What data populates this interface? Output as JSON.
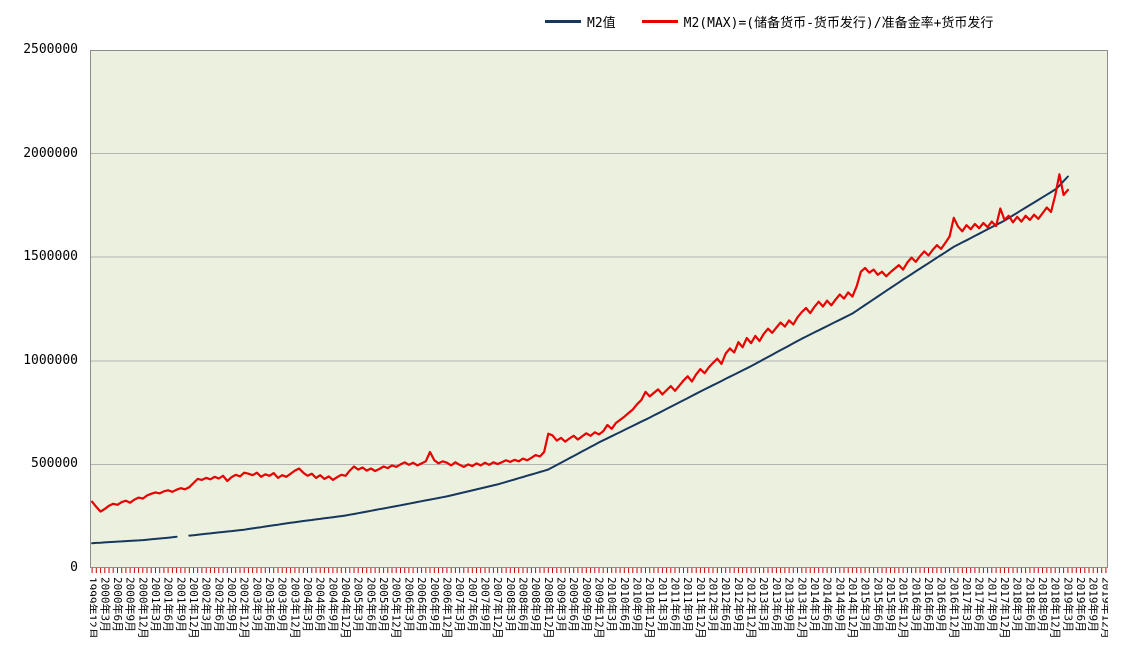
{
  "legend": [
    {
      "label": "M2值",
      "color": "#17375e"
    },
    {
      "label": "M2(MAX)=(储备货币-货币发行)/准备金率+货币发行",
      "color": "#e80000"
    }
  ],
  "y_axis": {
    "tick_labels": [
      "0",
      "500000",
      "1000000",
      "1500000",
      "2000000",
      "2500000"
    ],
    "tick_values": [
      0,
      500000,
      1000000,
      1500000,
      2000000,
      2500000
    ]
  },
  "chart_data": {
    "type": "line",
    "title": "",
    "xlabel": "",
    "ylabel": "",
    "ylim": [
      0,
      2500000
    ],
    "ytick_step": 500000,
    "grid": "horizontal",
    "legend_position": "top",
    "plot_bg": "#ebf1de",
    "grid_color": "#b3b3b3",
    "border_color": "#8c8c8c",
    "tick_color": "#cc0000",
    "x_interval": "monthly",
    "x_first": "1999年12月",
    "x_last_data": "2019年3月",
    "x_axis_last": "2019年12月",
    "total_months": 241,
    "x_labels": [
      "1999年12月",
      "2000年3月",
      "2000年6月",
      "2000年9月",
      "2000年12月",
      "2001年3月",
      "2001年6月",
      "2001年9月",
      "2001年12月",
      "2002年3月",
      "2002年6月",
      "2002年9月",
      "2002年12月",
      "2003年3月",
      "2003年6月",
      "2003年9月",
      "2003年12月",
      "2004年3月",
      "2004年6月",
      "2004年9月",
      "2004年12月",
      "2005年3月",
      "2005年6月",
      "2005年9月",
      "2005年12月",
      "2006年3月",
      "2006年6月",
      "2006年9月",
      "2006年12月",
      "2007年3月",
      "2007年6月",
      "2007年9月",
      "2007年12月",
      "2008年3月",
      "2008年6月",
      "2008年9月",
      "2008年12月",
      "2009年3月",
      "2009年6月",
      "2009年9月",
      "2009年12月",
      "2010年3月",
      "2010年6月",
      "2010年9月",
      "2010年12月",
      "2011年3月",
      "2011年6月",
      "2011年9月",
      "2011年12月",
      "2012年3月",
      "2012年6月",
      "2012年9月",
      "2012年12月",
      "2013年3月",
      "2013年6月",
      "2013年9月",
      "2013年12月",
      "2014年3月",
      "2014年6月",
      "2014年9月",
      "2014年12月",
      "2015年3月",
      "2015年6月",
      "2015年9月",
      "2015年12月",
      "2016年3月",
      "2016年6月",
      "2016年9月",
      "2016年12月",
      "2017年3月",
      "2017年6月",
      "2017年9月",
      "2017年12月",
      "2018年3月",
      "2018年6月",
      "2018年9月",
      "2018年12月",
      "2019年3月",
      "2019年6月",
      "2019年9月",
      "2019年12月"
    ],
    "series": [
      {
        "name": "M2值",
        "color": "#17375e",
        "values": [
          119900,
          121100,
          122300,
          123600,
          124800,
          126000,
          127300,
          128500,
          129700,
          131000,
          132200,
          133400,
          134600,
          136600,
          138600,
          140500,
          142500,
          144500,
          146400,
          148400,
          150400,
          null,
          null,
          156300,
          158300,
          160500,
          162800,
          165000,
          167200,
          169400,
          171700,
          173900,
          176100,
          178300,
          180600,
          182800,
          185000,
          188000,
          191000,
          194100,
          197100,
          200100,
          203100,
          206100,
          209200,
          212200,
          215200,
          218200,
          221200,
          223900,
          226600,
          229200,
          231900,
          234500,
          237200,
          239900,
          242500,
          245200,
          247900,
          250500,
          253200,
          257000,
          260800,
          264600,
          268400,
          272200,
          276000,
          279800,
          283600,
          287300,
          291100,
          294900,
          298800,
          302700,
          306600,
          310500,
          314400,
          318300,
          322200,
          326100,
          330000,
          333900,
          337800,
          341700,
          345600,
          350400,
          355200,
          360100,
          364900,
          369700,
          374500,
          379300,
          384200,
          389000,
          393800,
          398600,
          403400,
          409400,
          415400,
          421400,
          427300,
          433300,
          439300,
          445300,
          451300,
          457200,
          463200,
          469200,
          475200,
          486100,
          497000,
          508000,
          518900,
          529800,
          540700,
          551600,
          562600,
          573500,
          584400,
          595300,
          606200,
          616200,
          626200,
          636100,
          646100,
          656100,
          666000,
          676000,
          686000,
          695900,
          705900,
          715900,
          725900,
          736400,
          746800,
          757300,
          767800,
          778300,
          788700,
          799200,
          809700,
          820100,
          830600,
          841100,
          851600,
          861800,
          872000,
          882200,
          892400,
          902700,
          912900,
          923100,
          933300,
          943500,
          953700,
          963900,
          974200,
          985200,
          996300,
          1007300,
          1018300,
          1029400,
          1040400,
          1051400,
          1062500,
          1073500,
          1084500,
          1095500,
          1106500,
          1116700,
          1126800,
          1137000,
          1147100,
          1157300,
          1167500,
          1177600,
          1187800,
          1197900,
          1208100,
          1218200,
          1228400,
          1242000,
          1255700,
          1269400,
          1283000,
          1296700,
          1310300,
          1324000,
          1337700,
          1351300,
          1365000,
          1378600,
          1392300,
          1405500,
          1418600,
          1431800,
          1444900,
          1458100,
          1471200,
          1484400,
          1497500,
          1510700,
          1523800,
          1537000,
          1550100,
          1560700,
          1571200,
          1581800,
          1592300,
          1602900,
          1613500,
          1624000,
          1634600,
          1645100,
          1655700,
          1666200,
          1676800,
          1689300,
          1701800,
          1714300,
          1726800,
          1739300,
          1751800,
          1764200,
          1776700,
          1789200,
          1801700,
          1814200,
          1826700,
          1845000,
          1867400,
          1889400
        ]
      },
      {
        "name": "M2(MAX)=(储备货币-货币发行)/准备金率+货币发行",
        "color": "#e80000",
        "values": [
          320000,
          295000,
          272000,
          285000,
          300000,
          310000,
          305000,
          318000,
          325000,
          315000,
          330000,
          340000,
          335000,
          350000,
          358000,
          365000,
          360000,
          370000,
          375000,
          368000,
          378000,
          385000,
          380000,
          390000,
          410000,
          430000,
          425000,
          435000,
          428000,
          440000,
          432000,
          445000,
          420000,
          438000,
          450000,
          442000,
          460000,
          455000,
          448000,
          460000,
          440000,
          452000,
          445000,
          458000,
          435000,
          448000,
          440000,
          455000,
          470000,
          480000,
          460000,
          445000,
          455000,
          435000,
          448000,
          430000,
          442000,
          425000,
          438000,
          450000,
          445000,
          470000,
          490000,
          475000,
          485000,
          470000,
          480000,
          468000,
          478000,
          490000,
          482000,
          495000,
          488000,
          500000,
          510000,
          498000,
          508000,
          495000,
          505000,
          515000,
          560000,
          520000,
          505000,
          515000,
          508000,
          495000,
          510000,
          498000,
          488000,
          500000,
          492000,
          505000,
          495000,
          508000,
          498000,
          510000,
          502000,
          510000,
          520000,
          512000,
          522000,
          515000,
          528000,
          520000,
          532000,
          545000,
          538000,
          560000,
          648000,
          640000,
          615000,
          628000,
          610000,
          625000,
          638000,
          620000,
          635000,
          650000,
          638000,
          655000,
          645000,
          660000,
          690000,
          672000,
          700000,
          715000,
          730000,
          748000,
          765000,
          790000,
          810000,
          850000,
          828000,
          845000,
          862000,
          838000,
          858000,
          878000,
          855000,
          880000,
          905000,
          925000,
          900000,
          935000,
          960000,
          940000,
          968000,
          990000,
          1010000,
          985000,
          1035000,
          1060000,
          1040000,
          1090000,
          1065000,
          1110000,
          1085000,
          1120000,
          1095000,
          1130000,
          1155000,
          1135000,
          1160000,
          1185000,
          1165000,
          1195000,
          1175000,
          1210000,
          1235000,
          1255000,
          1230000,
          1260000,
          1285000,
          1262000,
          1290000,
          1268000,
          1295000,
          1320000,
          1300000,
          1330000,
          1310000,
          1360000,
          1430000,
          1448000,
          1425000,
          1440000,
          1415000,
          1430000,
          1408000,
          1428000,
          1445000,
          1462000,
          1440000,
          1475000,
          1498000,
          1478000,
          1505000,
          1528000,
          1508000,
          1535000,
          1558000,
          1540000,
          1570000,
          1600000,
          1690000,
          1648000,
          1625000,
          1655000,
          1635000,
          1660000,
          1640000,
          1665000,
          1645000,
          1672000,
          1650000,
          1735000,
          1680000,
          1700000,
          1668000,
          1695000,
          1672000,
          1700000,
          1680000,
          1705000,
          1685000,
          1712000,
          1740000,
          1718000,
          1798000,
          1900000,
          1800000,
          1825000
        ]
      }
    ]
  }
}
